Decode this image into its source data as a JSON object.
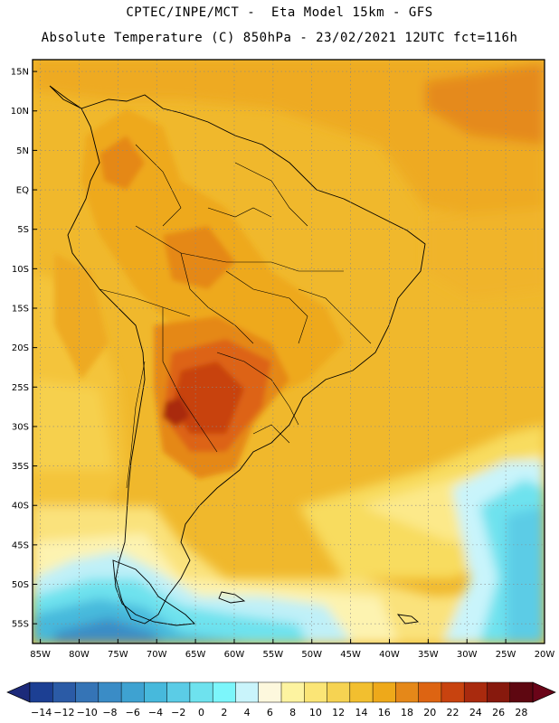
{
  "header": {
    "line1": "CPTEC/INPE/MCT -  Eta Model 15km - GFS",
    "line2": "Absolute Temperature (C) 850hPa - 23/02/2021 12UTC fct=116h"
  },
  "map": {
    "lat_labels": [
      "15N",
      "10N",
      "5N",
      "EQ",
      "5S",
      "10S",
      "15S",
      "20S",
      "25S",
      "30S",
      "35S",
      "40S",
      "45S",
      "50S",
      "55S"
    ],
    "lon_labels": [
      "85W",
      "80W",
      "75W",
      "70W",
      "65W",
      "60W",
      "55W",
      "50W",
      "45W",
      "40W",
      "35W",
      "30W",
      "25W",
      "20W"
    ],
    "lat_range": [
      -57.5,
      16.5
    ],
    "lon_range": [
      -86,
      -20
    ],
    "grid": "dotted"
  },
  "colorbar": {
    "ticks": [
      "-14",
      "-12",
      "-10",
      "-8",
      "-6",
      "-4",
      "-2",
      "0",
      "2",
      "4",
      "6",
      "8",
      "10",
      "12",
      "14",
      "16",
      "18",
      "20",
      "22",
      "24",
      "26",
      "28"
    ],
    "colors": [
      "#1c3f93",
      "#2b5ba6",
      "#3574b6",
      "#3a8cc6",
      "#3ea2d1",
      "#47b9dc",
      "#5bcce6",
      "#6ee2ee",
      "#7cf6fb",
      "#c9f4fb",
      "#fdf8dd",
      "#fdf3a0",
      "#fbe576",
      "#f6d352",
      "#f2bf2f",
      "#eea91a",
      "#e58819",
      "#dd6412",
      "#c8430f",
      "#a92a0e",
      "#87190d",
      "#5e0711"
    ],
    "under_color": "#1c2a7a",
    "over_color": "#6a0418"
  }
}
